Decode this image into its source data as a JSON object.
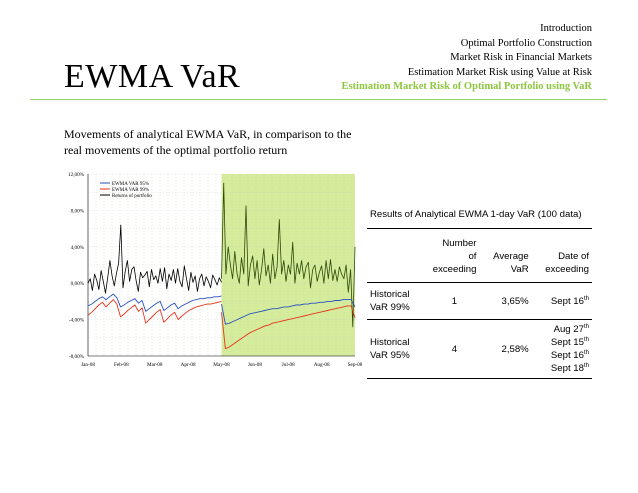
{
  "header": {
    "title": "EWMA VaR",
    "nav": [
      "Introduction",
      "Optimal Portfolio Construction",
      "Market Risk in Financial Markets",
      "Estimation Market Risk using Value at Risk"
    ],
    "nav_active": "Estimation Market Risk of Optimal Portfolio using VaR",
    "accent_color": "#8dc63f"
  },
  "subtitle": "Movements of analytical EWMA VaR, in comparison to the real movements of the optimal portfolio return",
  "chart_data": {
    "type": "line",
    "title": "",
    "xlabel": "",
    "ylabel": "",
    "x_ticks": [
      "Jan-08",
      "Feb-08",
      "Mar-08",
      "Apr-08",
      "May-08",
      "Jun-08",
      "Jul-08",
      "Aug-08",
      "Sep-08"
    ],
    "y_ticks": [
      "12,00%",
      "8,00%",
      "4,00%",
      "0,00%",
      "-4,00%",
      "-8,00%"
    ],
    "ylim": [
      -8,
      12
    ],
    "highlight_region": {
      "from": "May-08",
      "to": "Sep-08",
      "color": "#d4ec9c"
    },
    "legend": [
      "EWMA VAR 95%",
      "EWMA VAR 99%",
      "Returns of portfolio"
    ],
    "series": [
      {
        "name": "EWMA VAR 95%",
        "color": "#2a52be",
        "period1": [
          -2.5,
          -2.3,
          -2.0,
          -1.7,
          -1.5,
          -1.8,
          -1.5,
          -1.2,
          -1.6,
          -2.6,
          -2.4,
          -2.1,
          -1.9,
          -1.7,
          -2.2,
          -1.9,
          -3.1,
          -2.8,
          -2.5,
          -2.2,
          -2.0,
          -3.0,
          -2.7,
          -2.4,
          -2.2,
          -2.8,
          -2.5,
          -2.3,
          -2.1,
          -1.9,
          -1.8,
          -1.7,
          -1.7,
          -1.6,
          -1.6,
          -1.5,
          -1.5,
          -1.4
        ],
        "period2": [
          -2.3,
          -4.5,
          -4.4,
          -4.2,
          -4.0,
          -3.8,
          -3.6,
          -3.4,
          -3.3,
          -3.2,
          -3.1,
          -3.0,
          -2.9,
          -2.8,
          -2.8,
          -2.7,
          -2.6,
          -2.6,
          -2.5,
          -2.4,
          -2.4,
          -2.3,
          -2.3,
          -2.2,
          -2.2,
          -2.1,
          -2.1,
          -2.0,
          -2.0,
          -1.9,
          -1.9,
          -1.8,
          -1.8,
          -1.8,
          -2.6
        ]
      },
      {
        "name": "EWMA VAR 99%",
        "color": "#e8331e",
        "period1": [
          -3.5,
          -3.2,
          -2.8,
          -2.4,
          -2.1,
          -2.6,
          -2.2,
          -1.8,
          -2.3,
          -3.7,
          -3.4,
          -3.0,
          -2.7,
          -2.4,
          -3.1,
          -2.7,
          -4.4,
          -4.0,
          -3.6,
          -3.2,
          -2.9,
          -4.3,
          -3.9,
          -3.5,
          -3.2,
          -4.0,
          -3.6,
          -3.3,
          -3.0,
          -2.8,
          -2.6,
          -2.5,
          -2.4,
          -2.3,
          -2.3,
          -2.2,
          -2.1,
          -2.0
        ],
        "period2": [
          -3.2,
          -7.2,
          -7.0,
          -6.7,
          -6.4,
          -6.1,
          -5.8,
          -5.5,
          -5.3,
          -5.1,
          -4.9,
          -4.7,
          -4.6,
          -4.4,
          -4.3,
          -4.2,
          -4.1,
          -4.0,
          -3.9,
          -3.8,
          -3.7,
          -3.6,
          -3.5,
          -3.4,
          -3.3,
          -3.2,
          -3.1,
          -3.0,
          -2.9,
          -2.8,
          -2.7,
          -2.6,
          -2.5,
          -2.5,
          -3.8
        ]
      },
      {
        "name": "Returns of portfolio",
        "color": "#000000",
        "period1": [
          0.0,
          0.5,
          -0.8,
          1.0,
          0.3,
          -0.7,
          1.4,
          0.2,
          -1.1,
          0.6,
          2.5,
          0.8,
          -0.3,
          1.1,
          2.2,
          6.4,
          -0.5,
          1.3,
          2.5,
          0.2,
          1.5,
          1.8,
          0.3,
          -0.9,
          1.2,
          0.6,
          0.9,
          1.3,
          -0.4,
          1.5,
          0.4,
          0.8,
          0.0,
          1.6,
          0.2,
          1.7,
          -0.6,
          1.0,
          0.3,
          1.5,
          0.0,
          1.6,
          0.2,
          -0.4,
          1.9,
          0.5,
          -0.8,
          1.2,
          0.1,
          0.8,
          -0.9,
          0.5,
          1.0,
          -0.3,
          0.7,
          0.2,
          -0.5,
          0.9,
          0.4,
          -0.2,
          0.6,
          0.1
        ],
        "period2": [
          0.5,
          11.0,
          1.0,
          4.0,
          2.0,
          0.5,
          3.5,
          1.0,
          0.0,
          2.8,
          1.0,
          8.5,
          -0.3,
          2.0,
          3.0,
          0.5,
          2.5,
          -0.2,
          1.5,
          3.8,
          0.8,
          2.0,
          0.0,
          3.2,
          0.5,
          1.8,
          7.0,
          1.0,
          2.5,
          0.2,
          2.0,
          1.0,
          4.5,
          0.0,
          2.2,
          1.0,
          2.5,
          0.5,
          1.8,
          2.3,
          -0.5,
          1.5,
          2.0,
          0.2,
          1.2,
          1.9,
          0.0,
          2.5,
          0.5,
          2.6,
          0.3,
          1.5,
          0.2,
          1.8,
          1.0,
          0.5,
          2.0,
          -1.0,
          1.5,
          -4.8,
          4.0
        ]
      }
    ]
  },
  "results": {
    "caption": "Results of Analytical EWMA 1-day VaR (100 data)",
    "headers": [
      "Number of exceeding",
      "Average VaR",
      "Date of exceeding"
    ],
    "rows": [
      {
        "label": "Historical VaR 99%",
        "count": "1",
        "avg": "3,65%",
        "dates": [
          {
            "text": "Sept 16",
            "sup": "th"
          }
        ]
      },
      {
        "label": "Historical VaR 95%",
        "count": "4",
        "avg": "2,58%",
        "dates": [
          {
            "text": "Aug 27",
            "sup": "th"
          },
          {
            "text": "Sept 15",
            "sup": "th"
          },
          {
            "text": "Sept 16",
            "sup": "th"
          },
          {
            "text": "Sept 18",
            "sup": "th"
          }
        ]
      }
    ]
  }
}
